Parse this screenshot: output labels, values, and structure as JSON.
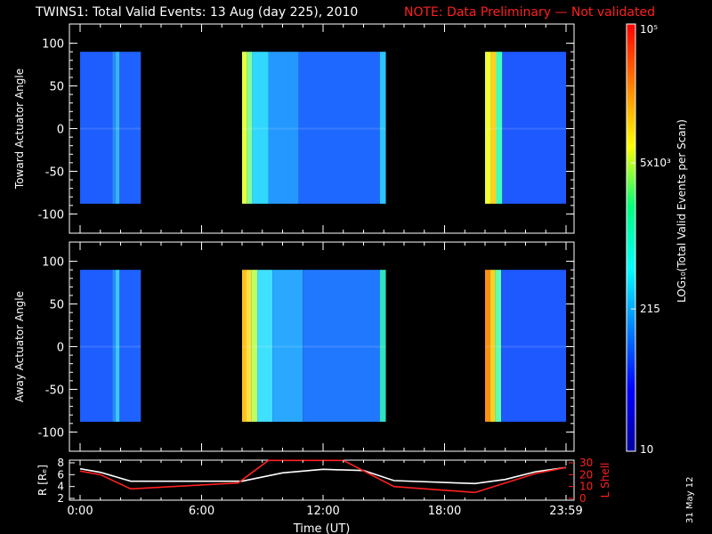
{
  "header": {
    "title": "TWINS1: Total Valid Events: 13 Aug (day 225), 2010",
    "note": "NOTE: Data Preliminary — Not validated"
  },
  "date_stamp": "31 May 12",
  "colors": {
    "background": "#000000",
    "axes": "#ffffff",
    "note": "#ff2020",
    "lshell": "#ff2020",
    "radius": "#ffffff"
  },
  "chart_data": [
    {
      "type": "heatmap",
      "ylabel": "Toward Actuator Angle",
      "ylim": [
        -110,
        110
      ],
      "yticks": [
        -100,
        -50,
        0,
        50,
        100
      ],
      "xlim": [
        0,
        24
      ],
      "data_y_range": [
        -88,
        90
      ],
      "blocks": [
        {
          "start": 0.0,
          "end": 3.0
        },
        {
          "start": 8.0,
          "end": 15.1
        },
        {
          "start": 20.0,
          "end": 24.0
        }
      ],
      "stripes": [
        {
          "start": 0.0,
          "end": 1.6,
          "color": "#1e5eff"
        },
        {
          "start": 1.6,
          "end": 1.75,
          "color": "#2a8cff"
        },
        {
          "start": 1.75,
          "end": 1.95,
          "color": "#38b2ff"
        },
        {
          "start": 1.95,
          "end": 3.0,
          "color": "#1f62ff"
        },
        {
          "start": 8.0,
          "end": 8.25,
          "color": "#e7ff40"
        },
        {
          "start": 8.25,
          "end": 8.5,
          "color": "#7fffa0"
        },
        {
          "start": 8.5,
          "end": 9.3,
          "color": "#30d8ff"
        },
        {
          "start": 9.3,
          "end": 10.8,
          "color": "#2498ff"
        },
        {
          "start": 10.8,
          "end": 14.8,
          "color": "#1f68ff"
        },
        {
          "start": 14.8,
          "end": 15.1,
          "color": "#2ec4ff"
        },
        {
          "start": 20.0,
          "end": 20.3,
          "color": "#f0ff30"
        },
        {
          "start": 20.3,
          "end": 20.55,
          "color": "#ffd020"
        },
        {
          "start": 20.55,
          "end": 20.85,
          "color": "#40ffc0"
        },
        {
          "start": 20.85,
          "end": 24.0,
          "color": "#1e58ff"
        }
      ]
    },
    {
      "type": "heatmap",
      "ylabel": "Away Actuator Angle",
      "ylim": [
        -110,
        110
      ],
      "yticks": [
        -100,
        -50,
        0,
        50,
        100
      ],
      "xlim": [
        0,
        24
      ],
      "data_y_range": [
        -88,
        90
      ],
      "blocks": [
        {
          "start": 0.0,
          "end": 3.0
        },
        {
          "start": 8.0,
          "end": 15.1
        },
        {
          "start": 20.0,
          "end": 24.0
        }
      ],
      "stripes": [
        {
          "start": 0.0,
          "end": 1.6,
          "color": "#1e5eff"
        },
        {
          "start": 1.6,
          "end": 1.75,
          "color": "#2a8cff"
        },
        {
          "start": 1.75,
          "end": 1.95,
          "color": "#38c8ff"
        },
        {
          "start": 1.95,
          "end": 3.0,
          "color": "#1f62ff"
        },
        {
          "start": 8.0,
          "end": 8.2,
          "color": "#ffc020"
        },
        {
          "start": 8.2,
          "end": 8.45,
          "color": "#ffe040"
        },
        {
          "start": 8.45,
          "end": 8.75,
          "color": "#c0ff60"
        },
        {
          "start": 8.75,
          "end": 9.5,
          "color": "#40e0ff"
        },
        {
          "start": 9.5,
          "end": 11.0,
          "color": "#2aa8ff"
        },
        {
          "start": 11.0,
          "end": 14.8,
          "color": "#2078ff"
        },
        {
          "start": 14.8,
          "end": 15.1,
          "color": "#30e0c0"
        },
        {
          "start": 20.0,
          "end": 20.25,
          "color": "#ff9010"
        },
        {
          "start": 20.25,
          "end": 20.5,
          "color": "#ffd020"
        },
        {
          "start": 20.5,
          "end": 20.8,
          "color": "#60ffb0"
        },
        {
          "start": 20.8,
          "end": 24.0,
          "color": "#1e58ff"
        }
      ]
    },
    {
      "type": "line",
      "ylabel": "R [Rₑ]",
      "y2label": "L Shell",
      "xlabel": "Time (UT)",
      "xlim": [
        0,
        24
      ],
      "ylim": [
        2,
        8
      ],
      "y2lim": [
        0,
        30
      ],
      "xticks": [
        0,
        6,
        12,
        18,
        24
      ],
      "xticklabels": [
        "0:00",
        "6:00",
        "12:00",
        "18:00",
        "23:59"
      ],
      "yticks": [
        2,
        4,
        6,
        8
      ],
      "y2ticks": [
        0,
        10,
        20,
        30
      ],
      "series": [
        {
          "axis": "left",
          "color": "#ffffff",
          "x": [
            0,
            1,
            2.5,
            8,
            10,
            12,
            14,
            15.5,
            19.5,
            21,
            22.5,
            24
          ],
          "y": [
            7.0,
            6.4,
            4.9,
            4.9,
            6.3,
            6.9,
            6.7,
            5.0,
            4.5,
            5.2,
            6.5,
            7.2
          ]
        },
        {
          "axis": "right",
          "color": "#ff2020",
          "x": [
            0,
            1,
            2.5,
            7.8,
            9.3,
            13.0,
            15.5,
            19.5,
            22.5,
            24
          ],
          "y": [
            23,
            20,
            8,
            13,
            32,
            32,
            10,
            5,
            21,
            26
          ]
        }
      ]
    }
  ],
  "colorbar": {
    "title": "LOG₁₀(Total Valid Events per Scan)",
    "range": [
      10,
      100000
    ],
    "ticks": [
      {
        "value": 100000,
        "label": "10⁵"
      },
      {
        "value": 5000,
        "label": "5x10³"
      },
      {
        "value": 215,
        "label": "215"
      },
      {
        "value": 10,
        "label": "10"
      }
    ],
    "stops": [
      "#0000a0",
      "#0000ff",
      "#0080ff",
      "#00ffff",
      "#00ff80",
      "#ffff00",
      "#ff8000",
      "#ff0000"
    ]
  }
}
